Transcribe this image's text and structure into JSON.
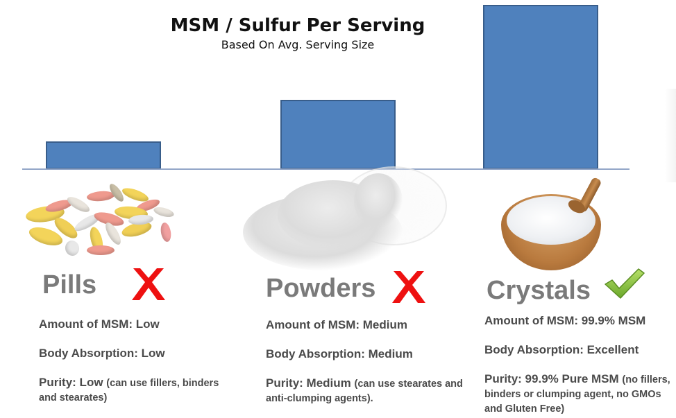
{
  "header": {
    "title": "MSM / Sulfur Per Serving",
    "subtitle": "Based On Avg. Serving Size"
  },
  "colors": {
    "bar_fill": "#4f81bd",
    "bar_border": "#385d8a",
    "baseline": "#93a6c8",
    "label_gray": "#7a7a7a",
    "text_dark": "#4a4a4a",
    "cross_red": "#ee1111",
    "check_green": "#8cc63f"
  },
  "chart_data": {
    "type": "bar",
    "title": "MSM / Sulfur Per Serving",
    "subtitle": "Based On Avg. Serving Size",
    "categories": [
      "Pills",
      "Powders",
      "Crystals"
    ],
    "values": [
      17,
      42,
      100
    ],
    "xlabel": "",
    "ylabel": "",
    "ylim": [
      0,
      100
    ],
    "axis_ticks": false,
    "grid": false,
    "legend": "none",
    "note": "Relative bar heights (no numeric axis shown); scaled so Crystals = 100"
  },
  "products": [
    {
      "name": "Pills",
      "verdict": "cross",
      "verdict_icon": "red-x-icon",
      "image": "pills-image",
      "amount": "Amount of MSM: Low",
      "absorption": "Body Absorption: Low",
      "purity_main": "Purity: Low",
      "purity_note": "(can use fillers, binders and stearates)"
    },
    {
      "name": "Powders",
      "verdict": "cross",
      "verdict_icon": "red-x-icon",
      "image": "powder-image",
      "amount": "Amount of MSM: Medium",
      "absorption": "Body Absorption: Medium",
      "purity_main": "Purity: Medium",
      "purity_note": "(can use stearates and anti-clumping agents)."
    },
    {
      "name": "Crystals",
      "verdict": "check",
      "verdict_icon": "green-check-icon",
      "image": "crystals-bowl-image",
      "amount": "Amount of MSM: 99.9% MSM",
      "absorption": "Body Absorption: Excellent",
      "purity_main": "Purity: 99.9% Pure MSM",
      "purity_note": "(no fillers, binders or clumping agent, no GMOs and Gluten Free)"
    }
  ]
}
